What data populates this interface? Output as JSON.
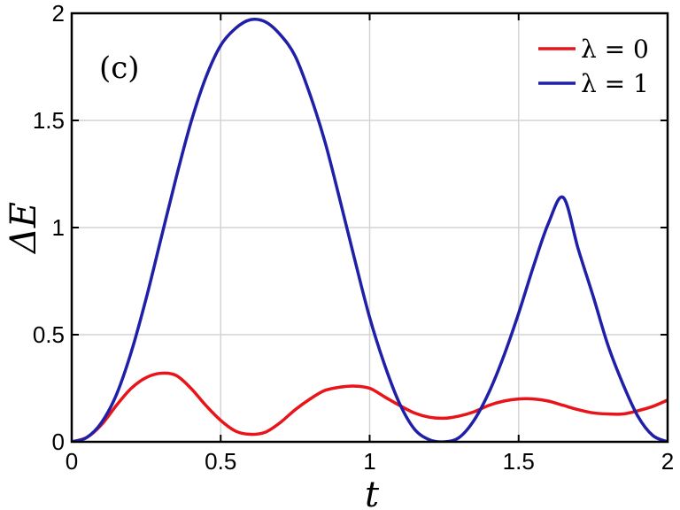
{
  "chart_data": {
    "type": "line",
    "title": "",
    "panel_label": "(c)",
    "xlabel": "t",
    "ylabel": "ΔE",
    "xlim": [
      0,
      2
    ],
    "ylim": [
      0,
      2
    ],
    "xticks": [
      0,
      0.5,
      1,
      1.5,
      2
    ],
    "xtick_labels": [
      "0",
      "0.5",
      "1",
      "1.5",
      "2"
    ],
    "yticks": [
      0,
      0.5,
      1,
      1.5,
      2
    ],
    "ytick_labels": [
      "0",
      "0.5",
      "1",
      "1.5",
      "2"
    ],
    "grid": true,
    "legend_position": "top-right",
    "x": [
      0,
      0.05,
      0.1,
      0.15,
      0.2,
      0.25,
      0.3,
      0.35,
      0.4,
      0.45,
      0.5,
      0.55,
      0.6,
      0.65,
      0.7,
      0.75,
      0.8,
      0.85,
      0.9,
      0.95,
      1.0,
      1.05,
      1.1,
      1.15,
      1.2,
      1.25,
      1.3,
      1.35,
      1.4,
      1.45,
      1.5,
      1.55,
      1.6,
      1.65,
      1.7,
      1.75,
      1.8,
      1.85,
      1.9,
      1.95,
      2.0
    ],
    "series": [
      {
        "name": "λ = 0",
        "color": "#e8141a",
        "values": [
          0,
          0.02,
          0.08,
          0.17,
          0.25,
          0.3,
          0.32,
          0.31,
          0.25,
          0.17,
          0.1,
          0.05,
          0.035,
          0.045,
          0.09,
          0.15,
          0.2,
          0.24,
          0.255,
          0.26,
          0.25,
          0.21,
          0.17,
          0.135,
          0.115,
          0.11,
          0.12,
          0.14,
          0.17,
          0.19,
          0.2,
          0.2,
          0.19,
          0.17,
          0.15,
          0.135,
          0.13,
          0.13,
          0.145,
          0.165,
          0.195
        ]
      },
      {
        "name": "λ = 1",
        "color": "#1f1fa8",
        "values": [
          0,
          0.02,
          0.09,
          0.22,
          0.42,
          0.67,
          0.95,
          1.23,
          1.49,
          1.7,
          1.85,
          1.93,
          1.97,
          1.96,
          1.9,
          1.8,
          1.62,
          1.4,
          1.13,
          0.85,
          0.58,
          0.36,
          0.18,
          0.06,
          0.01,
          0,
          0.02,
          0.1,
          0.23,
          0.4,
          0.6,
          0.82,
          1.02,
          1.14,
          0.9,
          0.68,
          0.45,
          0.27,
          0.12,
          0.03,
          0
        ]
      }
    ]
  }
}
